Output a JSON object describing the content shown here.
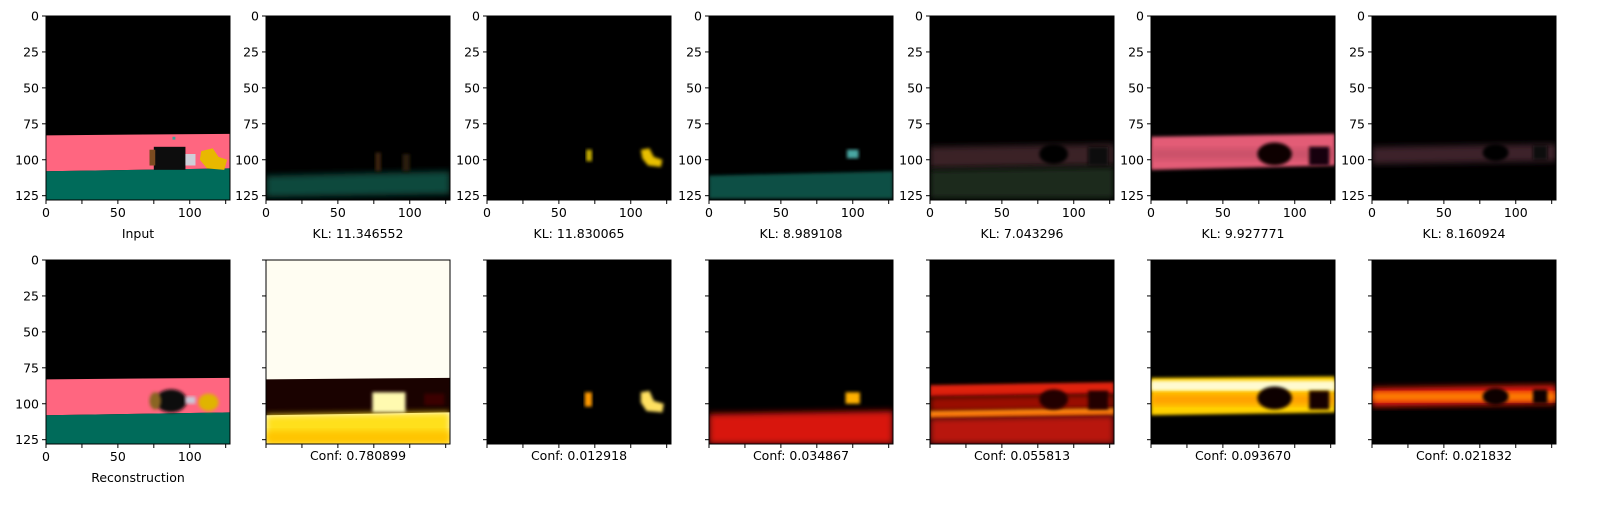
{
  "chart_data": {
    "type": "image_grid",
    "rows": 2,
    "cols": 7,
    "image_size": [
      128,
      128
    ],
    "axis_ticks": [
      0,
      25,
      50,
      75,
      100,
      125
    ],
    "axis_range": [
      0,
      128
    ],
    "top_row": [
      {
        "name": "input",
        "label": "Input",
        "kind": "input"
      },
      {
        "name": "slot-1",
        "label": "KL: 11.346552",
        "kind": "slot1"
      },
      {
        "name": "slot-2",
        "label": "KL: 11.830065",
        "kind": "slot2"
      },
      {
        "name": "slot-3",
        "label": "KL: 8.989108",
        "kind": "slot3"
      },
      {
        "name": "slot-4",
        "label": "KL: 7.043296",
        "kind": "slot4"
      },
      {
        "name": "slot-5",
        "label": "KL: 9.927771",
        "kind": "slot5"
      },
      {
        "name": "slot-6",
        "label": "KL: 8.160924",
        "kind": "slot6"
      }
    ],
    "bottom_row": [
      {
        "name": "reconstruction",
        "label": "Reconstruction",
        "kind": "recon"
      },
      {
        "name": "mask-1",
        "label": "Conf: 0.780899",
        "kind": "mask1"
      },
      {
        "name": "mask-2",
        "label": "Conf: 0.012918",
        "kind": "mask2"
      },
      {
        "name": "mask-3",
        "label": "Conf: 0.034867",
        "kind": "mask3"
      },
      {
        "name": "mask-4",
        "label": "Conf: 0.055813",
        "kind": "mask4"
      },
      {
        "name": "mask-5",
        "label": "Conf: 0.093670",
        "kind": "mask5"
      },
      {
        "name": "mask-6",
        "label": "Conf: 0.021832",
        "kind": "mask6"
      }
    ],
    "colors": {
      "pink": "#ff6680",
      "green": "#006b5a",
      "yellow": "#ffd000",
      "heat_low": "#000000",
      "heat_mid": "#e8220a",
      "heat_high": "#ffff80",
      "heat_max": "#ffffff"
    }
  }
}
